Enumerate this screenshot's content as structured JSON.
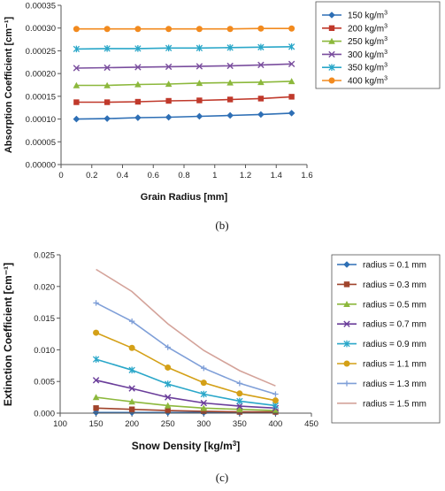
{
  "charts": [
    {
      "caption": "(b)",
      "chart_data": {
        "type": "line",
        "xlabel": "Grain Radius [mm]",
        "ylabel": "Absorption Coefficient [cm⁻¹]",
        "xlim": [
          0,
          1.6
        ],
        "ylim": [
          0,
          0.00035
        ],
        "x_ticks": [
          "0",
          "0.2",
          "0.4",
          "0.6",
          "0.8",
          "1",
          "1.2",
          "1.4",
          "1.6"
        ],
        "y_ticks": [
          "0.00000",
          "0.00005",
          "0.00010",
          "0.00015",
          "0.00020",
          "0.00025",
          "0.00030",
          "0.00035"
        ],
        "grid": false,
        "legend_position": "right",
        "x": [
          0.1,
          0.3,
          0.5,
          0.7,
          0.9,
          1.1,
          1.3,
          1.5
        ],
        "series": [
          {
            "name": "150 kg/m",
            "superscript": "3",
            "color": "#2e6fb5",
            "marker": "diamond",
            "values": [
              0.0001,
              0.000101,
              0.000103,
              0.000104,
              0.000106,
              0.000108,
              0.00011,
              0.000113
            ]
          },
          {
            "name": "200 kg/m",
            "superscript": "3",
            "color": "#c0392b",
            "marker": "square",
            "values": [
              0.000137,
              0.000137,
              0.000138,
              0.00014,
              0.000141,
              0.000143,
              0.000145,
              0.000149
            ]
          },
          {
            "name": "250 kg/m",
            "superscript": "3",
            "color": "#8cb83c",
            "marker": "triangle",
            "values": [
              0.000174,
              0.000174,
              0.000176,
              0.000177,
              0.000179,
              0.00018,
              0.000181,
              0.000183
            ]
          },
          {
            "name": "300 kg/m",
            "superscript": "3",
            "color": "#7a4e9e",
            "marker": "x",
            "values": [
              0.000212,
              0.000213,
              0.000214,
              0.000215,
              0.000216,
              0.000217,
              0.000219,
              0.000221
            ]
          },
          {
            "name": "350 kg/m",
            "superscript": "3",
            "color": "#2aa7c9",
            "marker": "star",
            "values": [
              0.000254,
              0.000255,
              0.000255,
              0.000256,
              0.000256,
              0.000257,
              0.000258,
              0.000259
            ]
          },
          {
            "name": "400 kg/m",
            "superscript": "3",
            "color": "#f28a1e",
            "marker": "circle",
            "values": [
              0.000298,
              0.000298,
              0.000298,
              0.000298,
              0.000298,
              0.000298,
              0.000299,
              0.000299
            ]
          }
        ]
      }
    },
    {
      "caption": "(c)",
      "chart_data": {
        "type": "line",
        "xlabel": "Snow Density [kg/m",
        "xlabel_superscript": "3",
        "xlabel_suffix": "]",
        "ylabel": "Extinction Coefficient [cm⁻¹]",
        "xlim": [
          100,
          450
        ],
        "ylim": [
          0,
          0.025
        ],
        "x_ticks": [
          "100",
          "150",
          "200",
          "250",
          "300",
          "350",
          "400",
          "450"
        ],
        "y_ticks": [
          "0.000",
          "0.005",
          "0.010",
          "0.015",
          "0.020",
          "0.025"
        ],
        "grid": false,
        "legend_position": "right",
        "x": [
          150,
          200,
          250,
          300,
          350,
          400
        ],
        "series": [
          {
            "name": "radius = 0.1 mm",
            "color": "#2e6fb5",
            "marker": "diamond",
            "values": [
              0.0001,
              0.0001,
              0.0001,
              0.0001,
              0.0001,
              0.0001
            ]
          },
          {
            "name": "radius = 0.3 mm",
            "color": "#a0442c",
            "marker": "square",
            "values": [
              0.0008,
              0.0006,
              0.0004,
              0.0003,
              0.0002,
              0.0002
            ]
          },
          {
            "name": "radius = 0.5 mm",
            "color": "#8cb83c",
            "marker": "triangle",
            "values": [
              0.0025,
              0.0018,
              0.0012,
              0.0008,
              0.0006,
              0.0004
            ]
          },
          {
            "name": "radius = 0.7 mm",
            "color": "#6a3d9a",
            "marker": "x",
            "values": [
              0.0052,
              0.0039,
              0.0025,
              0.0016,
              0.0011,
              0.0008
            ]
          },
          {
            "name": "radius = 0.9 mm",
            "color": "#2aa7c9",
            "marker": "star",
            "values": [
              0.0085,
              0.0068,
              0.0046,
              0.003,
              0.0019,
              0.0012
            ]
          },
          {
            "name": "radius = 1.1 mm",
            "color": "#d4a017",
            "marker": "circle",
            "values": [
              0.0127,
              0.0103,
              0.0072,
              0.0048,
              0.0031,
              0.002
            ]
          },
          {
            "name": "radius = 1.3 mm",
            "color": "#7f9fd8",
            "marker": "plus",
            "values": [
              0.0174,
              0.0145,
              0.0104,
              0.0071,
              0.0047,
              0.003
            ]
          },
          {
            "name": "radius = 1.5 mm",
            "color": "#d4a39a",
            "marker": "none",
            "values": [
              0.0227,
              0.0192,
              0.0141,
              0.0099,
              0.0067,
              0.0043
            ]
          }
        ]
      }
    }
  ]
}
